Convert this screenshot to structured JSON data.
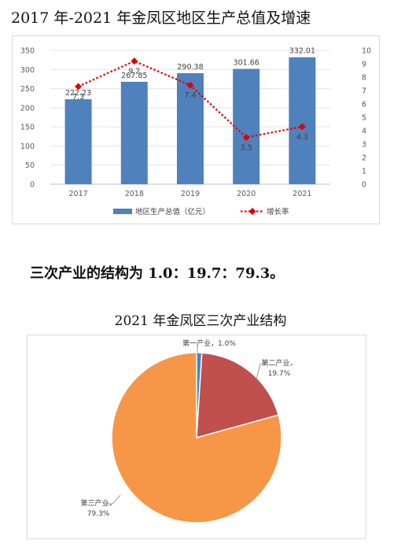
{
  "title": "2017 年-2021 年金凤区地区生产总值及增速",
  "sentence": "三次产业的结构为 1.0：19.7：79.3。",
  "pie_title": "2021 年金凤区三次产业结构",
  "colors": {
    "bar": "#4f81bd",
    "line": "#e00000",
    "primary": "#4f81bd",
    "secondary": "#c0504d",
    "tertiary": "#f79646"
  },
  "chart_data": [
    {
      "type": "bar",
      "categories": [
        "2017",
        "2018",
        "2019",
        "2020",
        "2021"
      ],
      "series": [
        {
          "name": "地区生产总值（亿元）",
          "type": "bar",
          "axis": "left",
          "values": [
            222.23,
            267.85,
            290.38,
            301.66,
            332.01
          ],
          "labels": [
            "222.23",
            "267.85",
            "290.38",
            "301.66",
            "332.01"
          ]
        },
        {
          "name": "增长率",
          "type": "line",
          "axis": "right",
          "values": [
            7.3,
            9.2,
            7.4,
            3.5,
            4.3
          ],
          "labels": [
            "7.3",
            "9.2",
            "7.4",
            "3.5",
            "4.3"
          ]
        }
      ],
      "ylim": [
        0,
        350
      ],
      "yticks": [
        "0",
        "50",
        "100",
        "150",
        "200",
        "250",
        "300",
        "350"
      ],
      "y2lim": [
        0,
        10
      ],
      "y2ticks": [
        "0",
        "1",
        "2",
        "3",
        "4",
        "5",
        "6",
        "7",
        "8",
        "9",
        "10"
      ],
      "legend": "bottom",
      "grid": true
    },
    {
      "type": "pie",
      "slices": [
        {
          "name": "第一产业",
          "value": 1.0,
          "label": "第一产业，1.0%"
        },
        {
          "name": "第二产业",
          "value": 19.7,
          "label_name": "第二产业，",
          "label_value": "19.7%"
        },
        {
          "name": "第三产业",
          "value": 79.3,
          "label_name": "第三产业，",
          "label_value": "79.3%"
        }
      ]
    }
  ]
}
